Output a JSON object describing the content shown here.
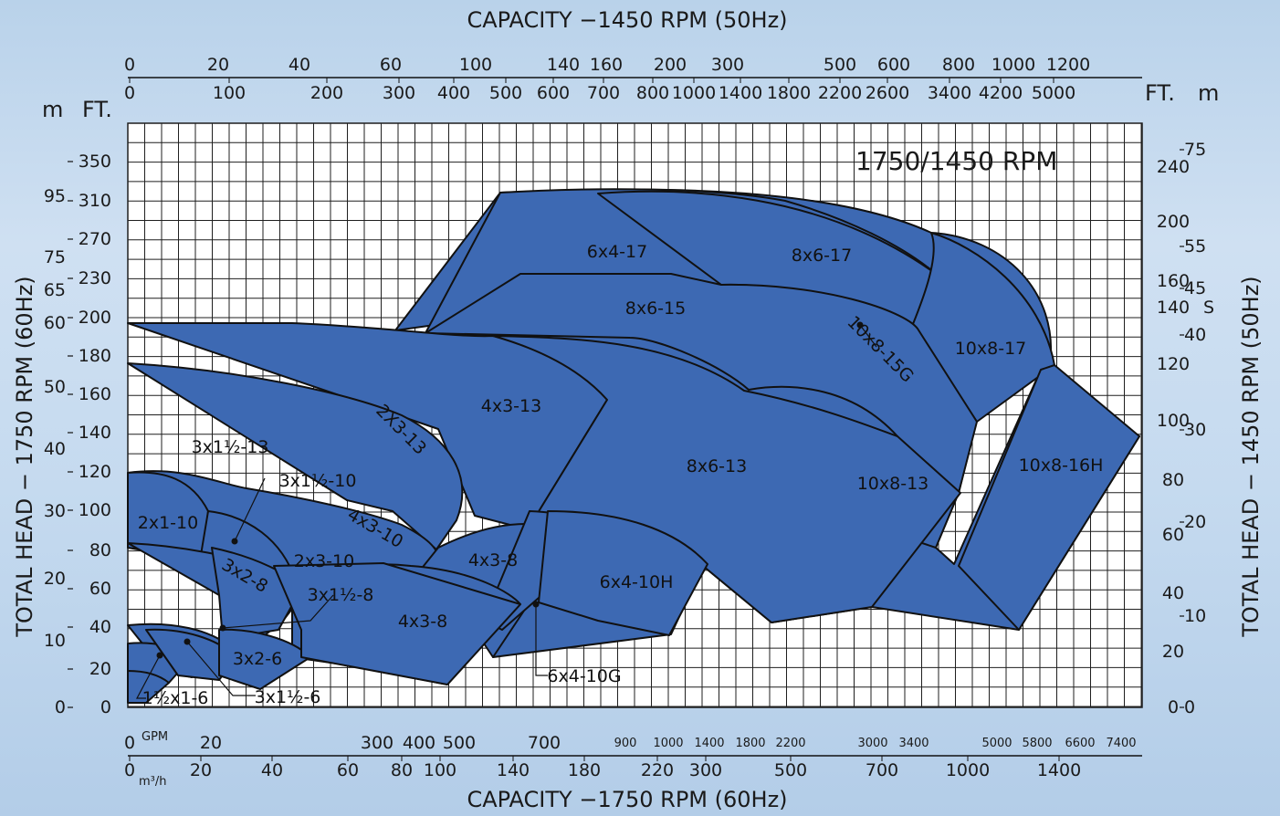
{
  "chart_data": {
    "type": "area",
    "title_top": "CAPACITY −1450 RPM (50Hz)",
    "title_bottom": "CAPACITY −1750 RPM (60Hz)",
    "ylabel_left": "TOTAL HEAD − 1750 RPM (60Hz)",
    "ylabel_right": "TOTAL HEAD − 1450 RPM (50Hz)",
    "speed_badge": "1750/1450 RPM",
    "units": {
      "left_m": "m",
      "left_ft": "FT.",
      "right_ft": "FT.",
      "right_m": "m",
      "right_extra": "S",
      "gpm": "GPM",
      "m3h": "m³/h"
    },
    "top_axis_m3h": [
      "0",
      "20",
      "40",
      "60",
      "100",
      "140",
      "160",
      "200",
      "300",
      "500",
      "600",
      "800",
      "1000",
      "1200"
    ],
    "top_axis_gpm": [
      "0",
      "100",
      "200",
      "300",
      "400",
      "500",
      "600",
      "700",
      "800",
      "1000",
      "1400",
      "1800",
      "2200",
      "2600",
      "3400",
      "4200",
      "5000"
    ],
    "bottom_axis_gpm": [
      "0",
      "20",
      "300",
      "400",
      "500",
      "700",
      "900",
      "1000",
      "1400",
      "1800",
      "2200",
      "3000",
      "3400",
      "5000",
      "5800",
      "6600",
      "7400"
    ],
    "bottom_axis_m3h": [
      "0",
      "20",
      "40",
      "60",
      "80",
      "100",
      "140",
      "180",
      "220",
      "300",
      "500",
      "700",
      "1000",
      "1400"
    ],
    "left_axis_ft": [
      "350",
      "310",
      "270",
      "230",
      "200",
      "180",
      "160",
      "140",
      "120",
      "100",
      "80",
      "60",
      "40",
      "20",
      "0"
    ],
    "left_axis_m": [
      "95",
      "75",
      "65",
      "60",
      "50",
      "40",
      "30",
      "20",
      "10",
      "0"
    ],
    "right_axis_ft": [
      "240",
      "200",
      "160",
      "140",
      "120",
      "100",
      "80",
      "60",
      "40",
      "20",
      "0"
    ],
    "right_axis_m": [
      "75",
      "55",
      "45",
      "40",
      "30",
      "20",
      "10",
      "0"
    ],
    "pump_models": [
      "6x4-17",
      "8x6-17",
      "8x6-15",
      "10x8-15G",
      "10x8-17",
      "4x3-13",
      "2X3-13",
      "3x1½-13",
      "3x1½-10",
      "2x1-10",
      "4x3-10",
      "2x3-10",
      "3x2-8",
      "3x1½-8",
      "4x3-8",
      "4x3-8",
      "6x4-10H",
      "8x6-13",
      "10x8-13",
      "10x8-16H",
      "3x2-6",
      "1½x1-6",
      "3x1½-6",
      "6x4-10G"
    ],
    "colors": {
      "region_fill": "#3d69b3",
      "region_stroke": "#111111",
      "grid": "#1f1f1f",
      "plot_bg": "#ffffff"
    }
  }
}
